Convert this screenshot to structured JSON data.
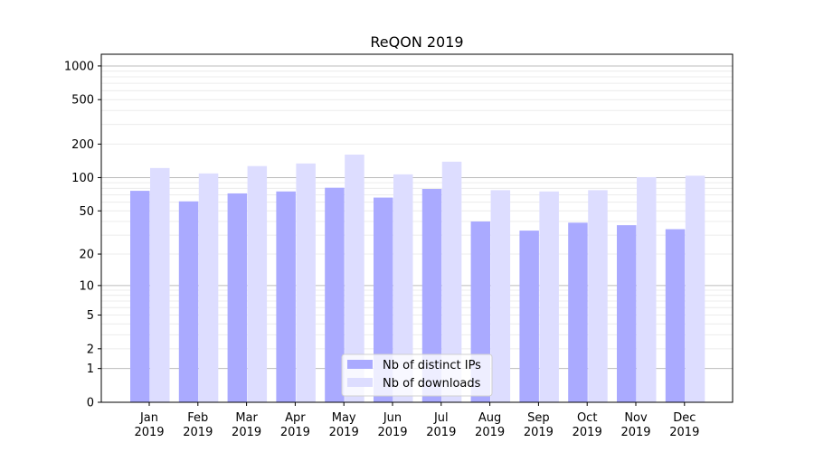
{
  "chart_data": {
    "type": "bar",
    "title": "ReQON 2019",
    "xlabel": "",
    "ylabel": "",
    "yscale": "log(1+y)",
    "ylim": [
      0,
      1200
    ],
    "yticks": [
      0,
      1,
      2,
      5,
      10,
      20,
      50,
      100,
      200,
      500,
      1000
    ],
    "grid": true,
    "legend_position": "lower center",
    "categories": [
      "Jan\n2019",
      "Feb\n2019",
      "Mar\n2019",
      "Apr\n2019",
      "May\n2019",
      "Jun\n2019",
      "Jul\n2019",
      "Aug\n2019",
      "Sep\n2019",
      "Oct\n2019",
      "Nov\n2019",
      "Dec\n2019"
    ],
    "series": [
      {
        "name": "Nb of distinct IPs",
        "color": "#aaaaff",
        "values": [
          76,
          61,
          72,
          75,
          81,
          66,
          79,
          40,
          33,
          39,
          37,
          34
        ]
      },
      {
        "name": "Nb of downloads",
        "color": "#ddddff",
        "values": [
          122,
          109,
          127,
          134,
          161,
          107,
          139,
          77,
          75,
          77,
          101,
          104
        ]
      }
    ]
  }
}
